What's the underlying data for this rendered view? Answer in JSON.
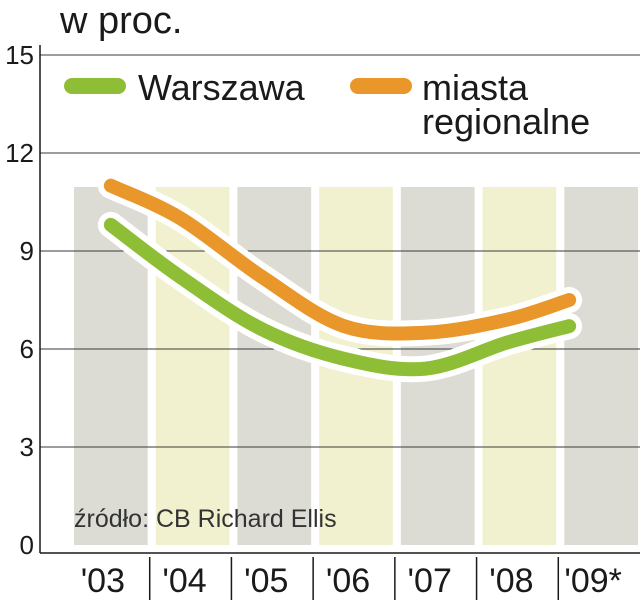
{
  "unit_label": "w proc.",
  "source": "źródło: CB Richard Ellis",
  "chart_data": {
    "type": "line",
    "title": "",
    "xlabel": "",
    "ylabel": "w proc.",
    "ylim": [
      0,
      15
    ],
    "yticks": [
      0,
      3,
      6,
      9,
      12,
      15
    ],
    "categories": [
      "'03",
      "'04",
      "'05",
      "'06",
      "'07",
      "'08",
      "'09*"
    ],
    "grid": true,
    "legend": "top",
    "series": [
      {
        "name": "Warszawa",
        "color": "#8dbe36",
        "values": [
          9.8,
          8.2,
          6.6,
          5.7,
          5.4,
          6.2,
          6.7
        ]
      },
      {
        "name": "miasta regionalne",
        "color": "#e9962b",
        "values": [
          11.0,
          10.0,
          8.2,
          6.7,
          6.5,
          6.9,
          7.5
        ]
      }
    ],
    "legend_entries": [
      "Warszawa",
      "miasta",
      "regionalne"
    ],
    "band_colors": [
      "#dcdcd4",
      "#f1f1cf"
    ]
  }
}
